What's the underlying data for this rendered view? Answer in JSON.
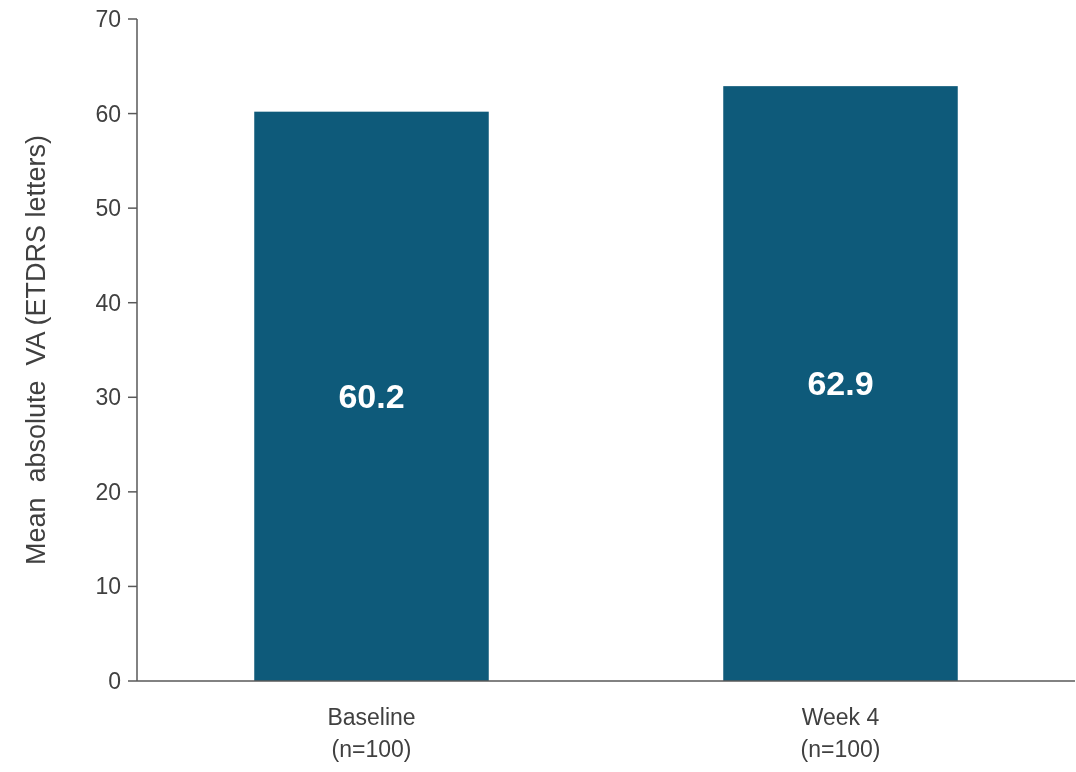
{
  "chart_data": {
    "type": "bar",
    "ylabel": "Mean  absolute  VA (ETDRS letters)",
    "categories": [
      "Baseline\n(n=100)",
      "Week 4\n(n=100)"
    ],
    "values": [
      60.2,
      62.9
    ],
    "color": "#0e5a7a",
    "ylim": [
      0,
      70
    ],
    "yticks": [
      0,
      10,
      20,
      30,
      40,
      50,
      60,
      70
    ],
    "data_labels": true,
    "grid": false
  }
}
